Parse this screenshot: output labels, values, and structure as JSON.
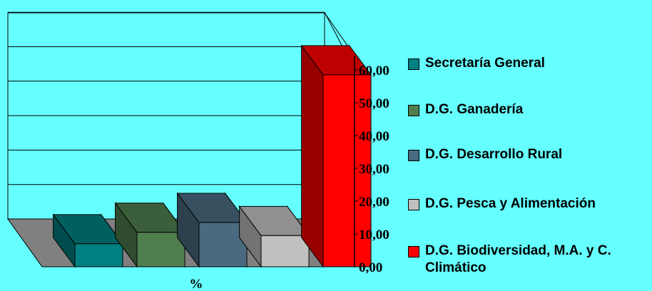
{
  "colors": {
    "background": "#66FFFF",
    "plot_back": "#66FFFF",
    "floor": "#808080",
    "gridline": "#000000"
  },
  "chart_data": {
    "type": "bar",
    "title": "",
    "xlabel": "%",
    "ylabel": "",
    "ylim": [
      0,
      60
    ],
    "y_ticks": [
      "0,00",
      "10,00",
      "20,00",
      "30,00",
      "40,00",
      "50,00",
      "60,00"
    ],
    "grid": true,
    "three_d": true,
    "legend_position": "right",
    "series": [
      {
        "name": "Secretaría General",
        "value": 7,
        "color": "#008080"
      },
      {
        "name": "D.G. Ganadería",
        "value": 10.5,
        "color": "#4F7F4F"
      },
      {
        "name": "D.G. Desarrollo Rural",
        "value": 13.5,
        "color": "#4A6A80"
      },
      {
        "name": "D.G. Pesca y Alimentación",
        "value": 9.5,
        "color": "#C0C0C0"
      },
      {
        "name": "D.G. Biodiversidad, M.A. y C. Climático",
        "value": 58.5,
        "color": "#FF0000"
      }
    ]
  }
}
